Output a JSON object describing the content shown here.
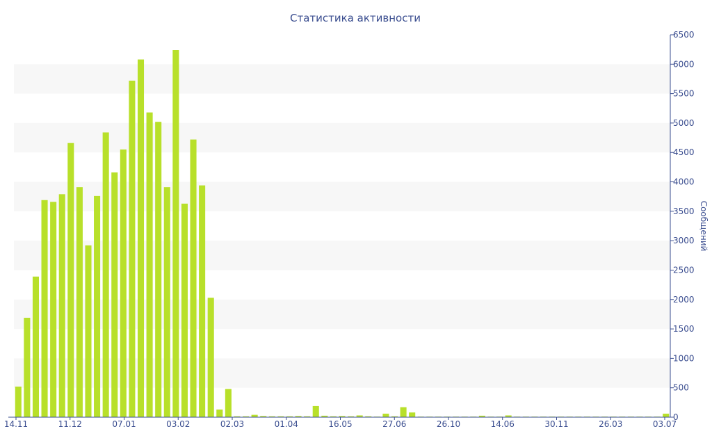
{
  "chart_data": {
    "type": "bar",
    "title": "Статистика активности",
    "ylabel": "Сообщений",
    "xlabel": "",
    "ylim": [
      0,
      6500
    ],
    "y_ticks": [
      "0",
      "500",
      "1000",
      "1500",
      "2000",
      "2500",
      "3000",
      "3500",
      "4000",
      "4500",
      "5000",
      "5500",
      "6000",
      "6500"
    ],
    "x_tick_labels": [
      "14.11",
      "11.12",
      "07.01",
      "03.02",
      "02.03",
      "01.04",
      "16.05",
      "27.06",
      "26.10",
      "14.06",
      "30.11",
      "26.03",
      "03.07"
    ],
    "values": [
      520,
      1690,
      2390,
      3690,
      3660,
      3790,
      4660,
      3910,
      2920,
      3760,
      4840,
      4160,
      4550,
      5720,
      6080,
      5180,
      5020,
      3910,
      6240,
      3630,
      4720,
      3940,
      2030,
      130,
      480,
      15,
      15,
      40,
      20,
      15,
      15,
      15,
      20,
      15,
      190,
      25,
      15,
      20,
      15,
      30,
      15,
      10,
      60,
      15,
      170,
      80,
      10,
      10,
      10,
      10,
      10,
      10,
      10,
      25,
      10,
      10,
      30,
      10,
      10,
      10,
      10,
      10,
      10,
      10,
      10,
      10,
      10,
      10,
      10,
      10,
      10,
      10,
      10,
      10,
      60
    ],
    "bar_color": "#b8e02a",
    "grid_band_color": "#f7f7f7",
    "axis_color": "#3a4d8f",
    "grid": true,
    "y_axis_position": "right"
  }
}
